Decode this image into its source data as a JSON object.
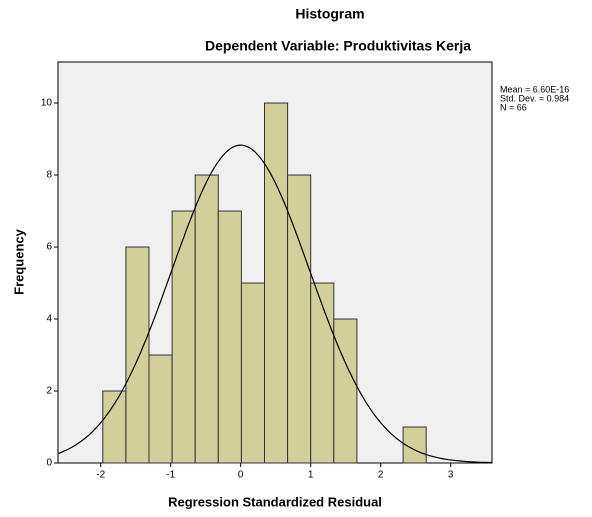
{
  "chart_data": {
    "type": "histogram",
    "title": "Histogram",
    "subtitle": "Dependent Variable: Produktivitas Kerja",
    "x_label": "Regression Standardized Residual",
    "y_label": "Frequency",
    "bins": [
      -1.97,
      -1.64,
      -1.31,
      -0.98,
      -0.65,
      -0.32,
      0.01,
      0.34,
      0.67,
      1.0,
      1.33,
      1.66,
      1.99,
      2.32,
      2.65
    ],
    "values": [
      2,
      6,
      3,
      7,
      8,
      7,
      5,
      10,
      8,
      5,
      4,
      0,
      0,
      1
    ],
    "color": "#d3cf9b",
    "xlim": [
      -2.61,
      3.59
    ],
    "xticks": [
      -2,
      -1,
      0,
      1,
      2,
      3
    ],
    "ylim": [
      0,
      11.14
    ],
    "yticks": [
      0,
      2,
      4,
      6,
      8,
      10
    ],
    "stats": [
      {
        "value": 6.6e-16,
        "label": "Mean = 6.60E-16"
      },
      {
        "value": 0.984,
        "label": "Std. Dev. = 0.984"
      },
      {
        "value": 66,
        "label": "N = 66"
      }
    ]
  }
}
